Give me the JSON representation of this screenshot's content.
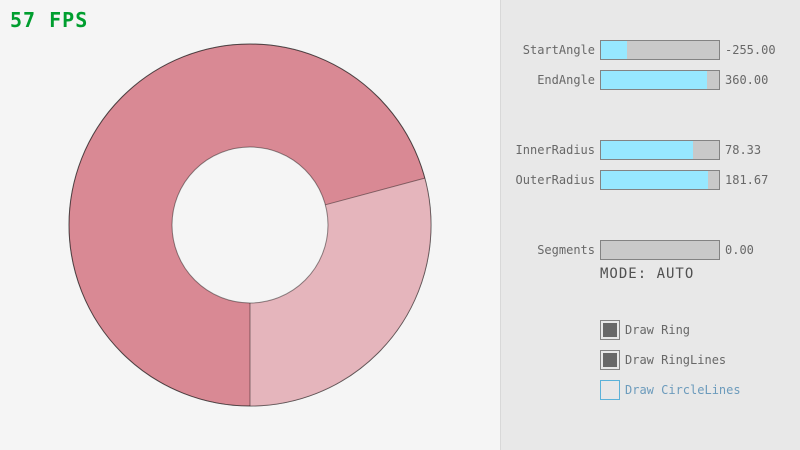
{
  "fps": {
    "text": "57 FPS"
  },
  "colors": {
    "fps_text": "#009E2F",
    "background": "#F5F5F5",
    "panel_bg": "#E8E8E8",
    "panel_divider": "#D8D8D8",
    "slider_border": "#838383",
    "slider_track": "#C9C9C9",
    "slider_fill": "#97E8FF",
    "control_text": "#686868",
    "mode_text": "#505050",
    "checkbox_check": "#686868",
    "checkbox_focused_border": "#5BB2D9",
    "checkbox_focused_text": "#6C9BBC",
    "ring_dark": "#D98994",
    "ring_light": "#E5B5BC",
    "ring_hole": "#F5F5F5",
    "ring_line": "rgba(0,0,0,0.42)"
  },
  "controls": {
    "sliders": [
      {
        "label": "StartAngle",
        "value": "-255.00",
        "fill_pct": 22
      },
      {
        "label": "EndAngle",
        "value": "360.00",
        "fill_pct": 90
      },
      {
        "label": "InnerRadius",
        "value": "78.33",
        "fill_pct": 78
      },
      {
        "label": "OuterRadius",
        "value": "181.67",
        "fill_pct": 91
      },
      {
        "label": "Segments",
        "value": "0.00",
        "fill_pct": 0
      }
    ],
    "mode_label": "MODE: AUTO",
    "checkboxes": [
      {
        "label": "Draw Ring",
        "checked": true,
        "focused": false
      },
      {
        "label": "Draw RingLines",
        "checked": true,
        "focused": false
      },
      {
        "label": "Draw CircleLines",
        "checked": false,
        "focused": true
      }
    ]
  }
}
